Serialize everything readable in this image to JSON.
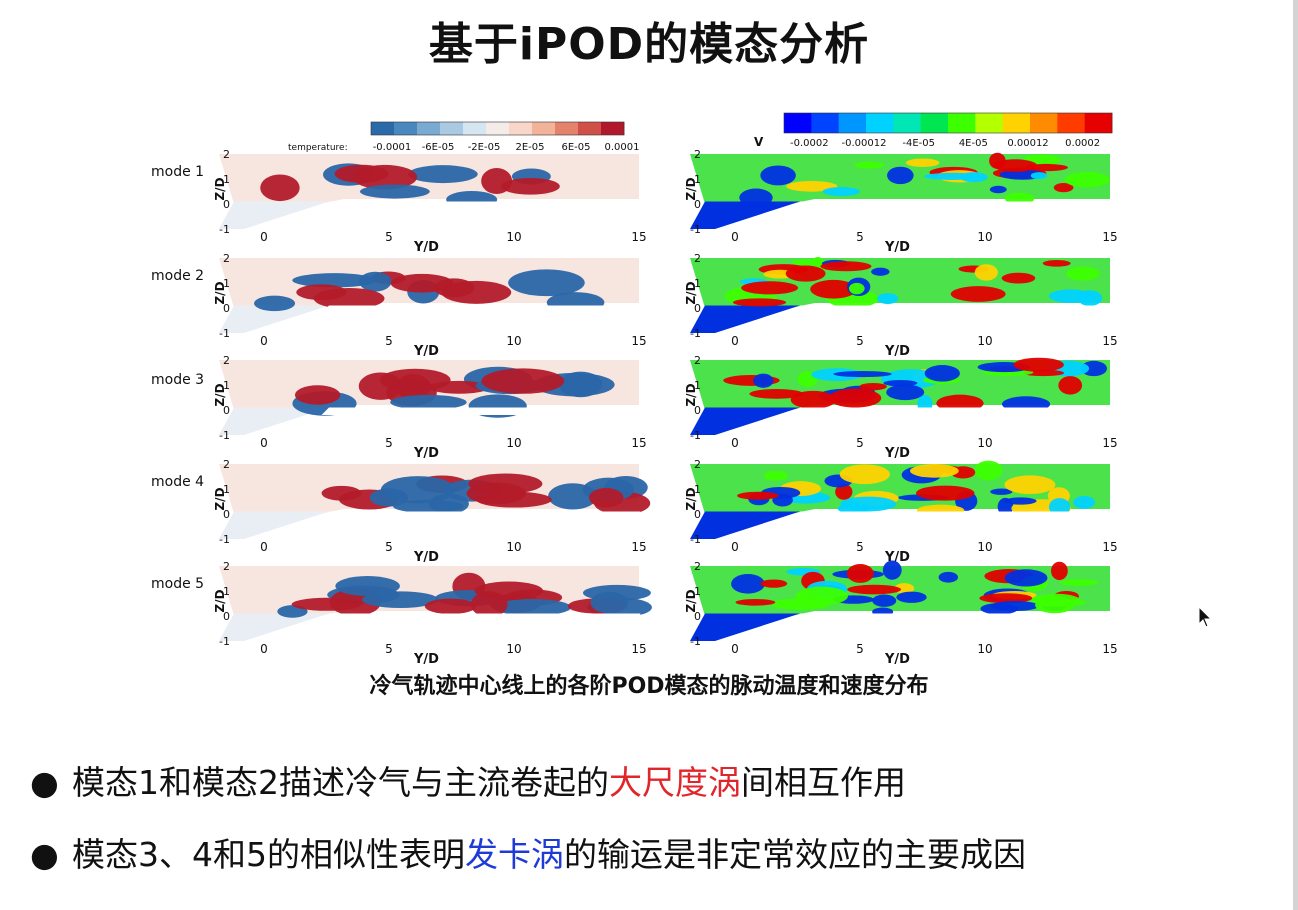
{
  "title": "基于iPOD的模态分析",
  "caption": "冷气轨迹中心线上的各阶POD模态的脉动温度和速度分布",
  "colorbars": {
    "temperature": {
      "label": "temperature:",
      "ticks": [
        "-0.0001",
        "-6E-05",
        "-2E-05",
        "2E-05",
        "6E-05",
        "0.0001"
      ],
      "colors": [
        "#2b6aa8",
        "#4a87bf",
        "#79aad2",
        "#aac9e2",
        "#d6e6f1",
        "#f4ece8",
        "#f8d6c8",
        "#f2b39a",
        "#e4836c",
        "#cf5049",
        "#b2182b"
      ]
    },
    "velocity": {
      "label": "V",
      "ticks": [
        "-0.0002",
        "-0.00012",
        "-4E-05",
        "4E-05",
        "0.00012",
        "0.0002"
      ],
      "colors": [
        "#0000ff",
        "#0044ff",
        "#0096ff",
        "#00d2ff",
        "#00e6b4",
        "#00e650",
        "#3cff00",
        "#b4ff00",
        "#ffd200",
        "#ff8c00",
        "#ff3c00",
        "#e60000"
      ]
    }
  },
  "axes": {
    "xlabel": "Y/D",
    "ylabel": "Z/D",
    "xticks": [
      "0",
      "5",
      "10",
      "15"
    ],
    "yticks": [
      "2",
      "1",
      "0",
      "-1"
    ]
  },
  "modes": [
    {
      "label": "mode 1"
    },
    {
      "label": "mode 2"
    },
    {
      "label": "mode 3"
    },
    {
      "label": "mode 4"
    },
    {
      "label": "mode 5"
    }
  ],
  "bullets": [
    {
      "before": "模态1和模态2描述冷气与主流卷起的",
      "highlight": "大尺度涡",
      "after": "间相互作用",
      "highlight_color": "#e0262b"
    },
    {
      "before": "模态3、4和5的相似性表明",
      "highlight": "发卡涡",
      "after": "的输运是非定常效应的主要成因",
      "highlight_color": "#1f3bd6"
    }
  ]
}
